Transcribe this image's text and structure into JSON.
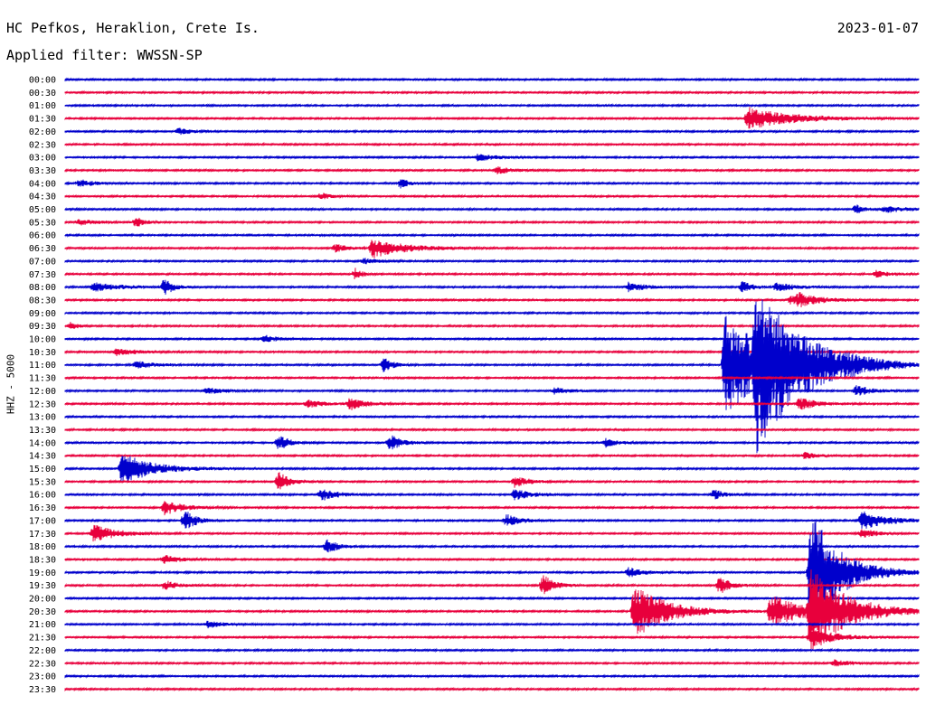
{
  "header": {
    "station": "HC Pefkos, Heraklion, Crete Is.",
    "date": "2023-01-07",
    "filter": "Applied filter: WWSSN-SP"
  },
  "chart_data": {
    "type": "line",
    "title": "HC Pefkos, Heraklion, Crete Is.",
    "subtitle": "Applied filter: WWSSN-SP",
    "ylabel": "HHZ - 5000",
    "xlabel": "",
    "colors": [
      "#0000cc",
      "#e8003c"
    ],
    "grid": false,
    "legend": "none",
    "trace_minutes": 30,
    "categories": [
      "00:00",
      "00:30",
      "01:00",
      "01:30",
      "02:00",
      "02:30",
      "03:00",
      "03:30",
      "04:00",
      "04:30",
      "05:00",
      "05:30",
      "06:00",
      "06:30",
      "07:00",
      "07:30",
      "08:00",
      "08:30",
      "09:00",
      "09:30",
      "10:00",
      "10:30",
      "11:00",
      "11:30",
      "12:00",
      "12:30",
      "13:00",
      "13:30",
      "14:00",
      "14:30",
      "15:00",
      "15:30",
      "16:00",
      "16:30",
      "17:00",
      "17:30",
      "18:00",
      "18:30",
      "19:00",
      "19:30",
      "20:00",
      "20:30",
      "21:00",
      "21:30",
      "22:00",
      "22:30",
      "23:00",
      "23:30"
    ],
    "events": [
      {
        "row": 3,
        "minute": 24.0,
        "amp": 12,
        "dur": 2.4
      },
      {
        "row": 4,
        "minute": 4.0,
        "amp": 4,
        "dur": 0.6
      },
      {
        "row": 6,
        "minute": 14.5,
        "amp": 4,
        "dur": 1.0
      },
      {
        "row": 7,
        "minute": 15.2,
        "amp": 4,
        "dur": 0.8
      },
      {
        "row": 8,
        "minute": 0.5,
        "amp": 4,
        "dur": 0.8
      },
      {
        "row": 8,
        "minute": 11.8,
        "amp": 6,
        "dur": 0.4
      },
      {
        "row": 9,
        "minute": 9.0,
        "amp": 4,
        "dur": 0.5
      },
      {
        "row": 10,
        "minute": 27.8,
        "amp": 6,
        "dur": 0.4
      },
      {
        "row": 10,
        "minute": 28.8,
        "amp": 4,
        "dur": 1.0
      },
      {
        "row": 11,
        "minute": 0.5,
        "amp": 3,
        "dur": 1.0
      },
      {
        "row": 11,
        "minute": 2.5,
        "amp": 6,
        "dur": 0.4
      },
      {
        "row": 13,
        "minute": 9.5,
        "amp": 5,
        "dur": 0.6
      },
      {
        "row": 13,
        "minute": 10.8,
        "amp": 11,
        "dur": 1.8
      },
      {
        "row": 14,
        "minute": 10.5,
        "amp": 3,
        "dur": 0.8
      },
      {
        "row": 15,
        "minute": 10.2,
        "amp": 6,
        "dur": 0.4
      },
      {
        "row": 15,
        "minute": 28.5,
        "amp": 4,
        "dur": 0.6
      },
      {
        "row": 16,
        "minute": 1.0,
        "amp": 5,
        "dur": 1.4
      },
      {
        "row": 16,
        "minute": 3.5,
        "amp": 12,
        "dur": 0.4
      },
      {
        "row": 16,
        "minute": 19.8,
        "amp": 5,
        "dur": 1.0
      },
      {
        "row": 16,
        "minute": 23.8,
        "amp": 7,
        "dur": 0.5
      },
      {
        "row": 16,
        "minute": 25.0,
        "amp": 5,
        "dur": 1.0
      },
      {
        "row": 17,
        "minute": 25.5,
        "amp": 5,
        "dur": 1.0
      },
      {
        "row": 17,
        "minute": 25.8,
        "amp": 5,
        "dur": 1.2
      },
      {
        "row": 19,
        "minute": 0.2,
        "amp": 4,
        "dur": 0.4
      },
      {
        "row": 20,
        "minute": 7.0,
        "amp": 4,
        "dur": 0.8
      },
      {
        "row": 21,
        "minute": 1.8,
        "amp": 4,
        "dur": 1.0
      },
      {
        "row": 22,
        "minute": 2.5,
        "amp": 4,
        "dur": 1.0
      },
      {
        "row": 22,
        "minute": 11.2,
        "amp": 9,
        "dur": 0.5
      },
      {
        "row": 22,
        "minute": 23.2,
        "amp": 55,
        "dur": 2.6
      },
      {
        "row": 22,
        "minute": 24.3,
        "amp": 70,
        "dur": 2.4
      },
      {
        "row": 22,
        "minute": 27.5,
        "amp": 4,
        "dur": 0.8
      },
      {
        "row": 24,
        "minute": 5.0,
        "amp": 4,
        "dur": 0.8
      },
      {
        "row": 24,
        "minute": 17.2,
        "amp": 4,
        "dur": 0.8
      },
      {
        "row": 24,
        "minute": 27.8,
        "amp": 6,
        "dur": 0.8
      },
      {
        "row": 25,
        "minute": 8.5,
        "amp": 4,
        "dur": 1.0
      },
      {
        "row": 25,
        "minute": 10.0,
        "amp": 7,
        "dur": 0.8
      },
      {
        "row": 25,
        "minute": 25.8,
        "amp": 7,
        "dur": 1.0
      },
      {
        "row": 28,
        "minute": 7.5,
        "amp": 9,
        "dur": 0.6
      },
      {
        "row": 28,
        "minute": 11.4,
        "amp": 10,
        "dur": 0.6
      },
      {
        "row": 28,
        "minute": 19.0,
        "amp": 5,
        "dur": 0.6
      },
      {
        "row": 29,
        "minute": 26.0,
        "amp": 4,
        "dur": 0.6
      },
      {
        "row": 30,
        "minute": 2.0,
        "amp": 18,
        "dur": 1.6
      },
      {
        "row": 31,
        "minute": 7.5,
        "amp": 12,
        "dur": 0.6
      },
      {
        "row": 31,
        "minute": 15.8,
        "amp": 6,
        "dur": 0.8
      },
      {
        "row": 32,
        "minute": 9.0,
        "amp": 7,
        "dur": 0.8
      },
      {
        "row": 32,
        "minute": 15.8,
        "amp": 7,
        "dur": 0.8
      },
      {
        "row": 32,
        "minute": 22.8,
        "amp": 6,
        "dur": 0.6
      },
      {
        "row": 33,
        "minute": 3.5,
        "amp": 8,
        "dur": 1.0
      },
      {
        "row": 34,
        "minute": 4.2,
        "amp": 12,
        "dur": 0.6
      },
      {
        "row": 34,
        "minute": 15.5,
        "amp": 7,
        "dur": 0.8
      },
      {
        "row": 34,
        "minute": 28.0,
        "amp": 10,
        "dur": 1.4
      },
      {
        "row": 35,
        "minute": 1.0,
        "amp": 10,
        "dur": 1.2
      },
      {
        "row": 35,
        "minute": 28.0,
        "amp": 5,
        "dur": 0.8
      },
      {
        "row": 36,
        "minute": 9.2,
        "amp": 8,
        "dur": 0.6
      },
      {
        "row": 37,
        "minute": 3.5,
        "amp": 5,
        "dur": 0.8
      },
      {
        "row": 38,
        "minute": 19.8,
        "amp": 5,
        "dur": 0.8
      },
      {
        "row": 38,
        "minute": 26.2,
        "amp": 70,
        "dur": 1.6
      },
      {
        "row": 39,
        "minute": 3.5,
        "amp": 5,
        "dur": 0.8
      },
      {
        "row": 39,
        "minute": 16.8,
        "amp": 12,
        "dur": 0.6
      },
      {
        "row": 39,
        "minute": 23.0,
        "amp": 10,
        "dur": 0.6
      },
      {
        "row": 41,
        "minute": 20.0,
        "amp": 30,
        "dur": 1.8
      },
      {
        "row": 41,
        "minute": 24.8,
        "amp": 18,
        "dur": 1.8
      },
      {
        "row": 41,
        "minute": 26.2,
        "amp": 45,
        "dur": 2.0
      },
      {
        "row": 42,
        "minute": 5.0,
        "amp": 4,
        "dur": 0.8
      },
      {
        "row": 43,
        "minute": 26.2,
        "amp": 12,
        "dur": 1.2
      },
      {
        "row": 45,
        "minute": 27.0,
        "amp": 4,
        "dur": 0.8
      }
    ]
  }
}
